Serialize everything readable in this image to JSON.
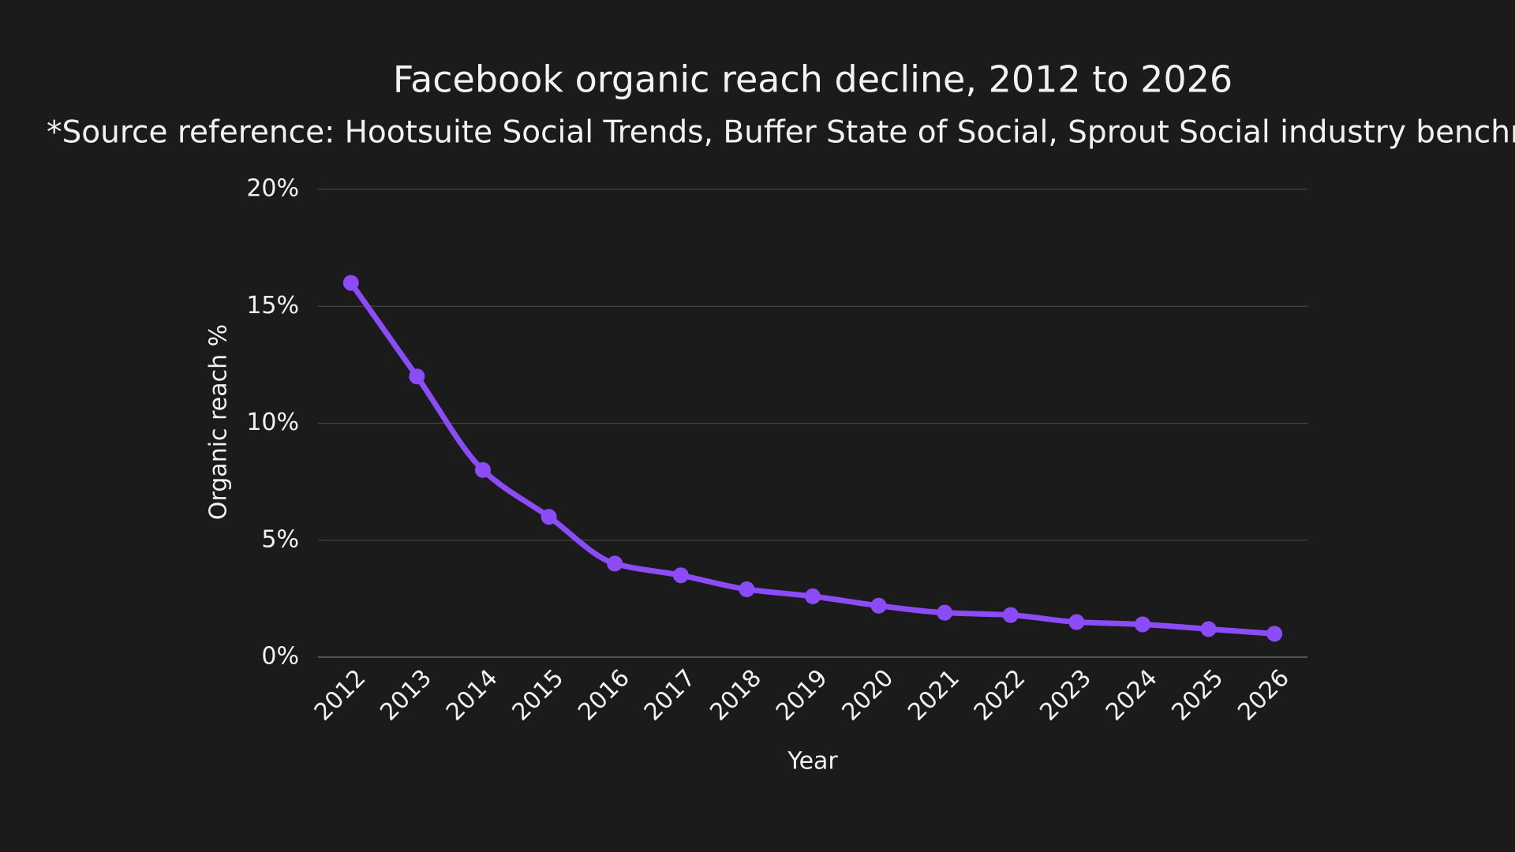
{
  "chart_data": {
    "type": "line",
    "title": "Facebook organic reach decline, 2012 to 2026",
    "subtitle": "*Source reference: Hootsuite Social Trends, Buffer State of Social, Sprout Social industry benchm",
    "x_label": "Year",
    "y_label": "Organic reach %",
    "categories": [
      "2012",
      "2013",
      "2014",
      "2015",
      "2016",
      "2017",
      "2018",
      "2019",
      "2020",
      "2021",
      "2022",
      "2023",
      "2024",
      "2025",
      "2026"
    ],
    "values": [
      16,
      12,
      8,
      6,
      4,
      3.5,
      2.9,
      2.6,
      2.2,
      1.9,
      1.8,
      1.5,
      1.4,
      1.2,
      1.0
    ],
    "color": "#8b4cf7",
    "ylim": [
      0,
      20
    ],
    "yticks": [
      {
        "value": 0,
        "label": "0%"
      },
      {
        "value": 5,
        "label": "5%"
      },
      {
        "value": 10,
        "label": "10%"
      },
      {
        "value": 15,
        "label": "15%"
      },
      {
        "value": 20,
        "label": "20%"
      }
    ],
    "grid": true
  }
}
